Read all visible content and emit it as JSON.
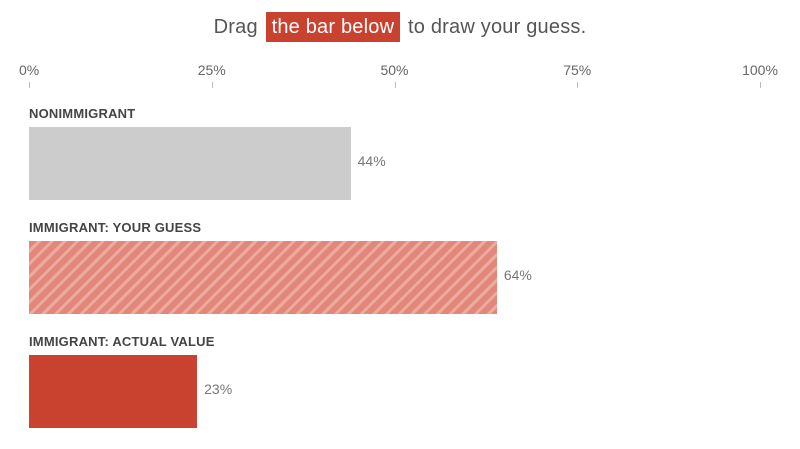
{
  "instruction": {
    "before": "Drag",
    "highlight": "the bar below",
    "after": "to draw your guess."
  },
  "axis": {
    "ticks": [
      "0%",
      "25%",
      "50%",
      "75%",
      "100%"
    ]
  },
  "colors": {
    "nonimmigrant_bar": "#cccccc",
    "guess_bar": "#e1887a",
    "actual_bar": "#c8422f",
    "highlight": "#c8422f"
  },
  "chart_data": {
    "type": "bar",
    "orientation": "horizontal",
    "xlim": [
      0,
      100
    ],
    "ticks": [
      0,
      25,
      50,
      75,
      100
    ],
    "categories": [
      "NONIMMIGRANT",
      "IMMIGRANT: YOUR GUESS",
      "IMMIGRANT: ACTUAL VALUE"
    ],
    "values": [
      44,
      64,
      23
    ],
    "value_labels": [
      "44%",
      "64%",
      "23%"
    ],
    "grid": false
  }
}
